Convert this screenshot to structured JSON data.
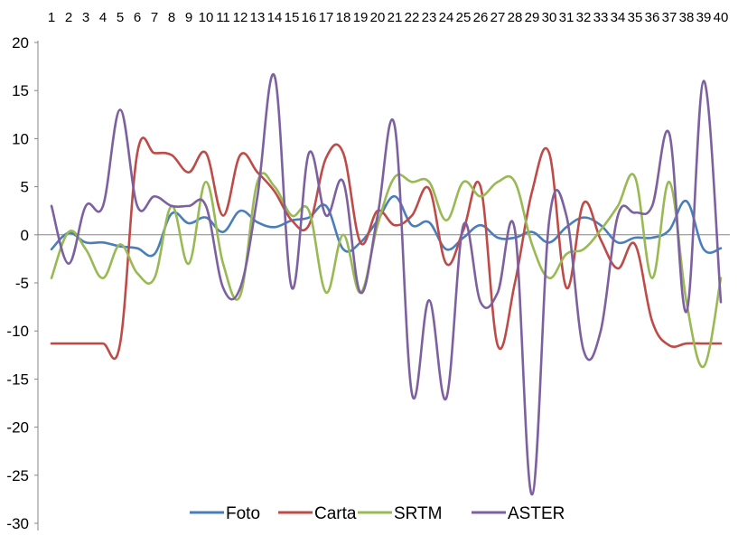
{
  "chart_data": {
    "type": "line",
    "title": "",
    "xlabel": "",
    "ylabel": "",
    "x": [
      1,
      2,
      3,
      4,
      5,
      6,
      7,
      8,
      9,
      10,
      11,
      12,
      13,
      14,
      15,
      16,
      17,
      18,
      19,
      20,
      21,
      22,
      23,
      24,
      25,
      26,
      27,
      28,
      29,
      30,
      31,
      32,
      33,
      34,
      35,
      36,
      37,
      38,
      39,
      40
    ],
    "ylim": [
      -30,
      20
    ],
    "yticks": [
      "20",
      "15",
      "10",
      "5",
      "0",
      "-5",
      "-10",
      "-15",
      "-20",
      "-25",
      "-30"
    ],
    "xtick_labels": [
      "1",
      "2",
      "3",
      "4",
      "5",
      "6",
      "7",
      "8",
      "9",
      "10",
      "11",
      "12",
      "13",
      "14",
      "15",
      "16",
      "17",
      "18",
      "19",
      "20",
      "21",
      "22",
      "23",
      "24",
      "25",
      "26",
      "27",
      "28",
      "29",
      "30",
      "31",
      "32",
      "33",
      "34",
      "35",
      "36",
      "37",
      "38",
      "39",
      "40"
    ],
    "grid": false,
    "legend_position": "bottom",
    "series": [
      {
        "name": "Foto",
        "color": "#4a7ebb",
        "values": [
          -1.5,
          0.2,
          -0.8,
          -0.8,
          -1.2,
          -1.4,
          -2.0,
          2.2,
          1.2,
          1.8,
          0.3,
          2.5,
          1.3,
          0.8,
          1.5,
          1.8,
          3.0,
          -1.5,
          -0.8,
          1.5,
          4.0,
          1.0,
          1.3,
          -1.5,
          -0.3,
          1.0,
          -0.3,
          -0.3,
          0.3,
          -0.8,
          0.8,
          1.8,
          1.0,
          -0.8,
          -0.3,
          -0.3,
          0.5,
          3.5,
          -1.5,
          -1.4
        ]
      },
      {
        "name": "Carta",
        "color": "#be4b48",
        "values": [
          -11.3,
          -11.3,
          -11.3,
          -11.3,
          -11.3,
          8.5,
          8.5,
          8.3,
          6.5,
          8.5,
          2.0,
          8.3,
          6.5,
          4.5,
          1.5,
          1.0,
          8.0,
          8.5,
          -0.8,
          2.5,
          1.0,
          2.0,
          4.8,
          -3.0,
          0.5,
          5.0,
          -11.5,
          -5.0,
          4.5,
          8.5,
          -5.5,
          3.3,
          -0.5,
          -3.5,
          -1.0,
          -9.0,
          -11.5,
          -11.3,
          -11.3,
          -11.3
        ]
      },
      {
        "name": "SRTM",
        "color": "#98b954",
        "values": [
          -4.5,
          0.3,
          -1.5,
          -4.5,
          -1.0,
          -4.0,
          -4.5,
          3.0,
          -3.0,
          5.5,
          -3.0,
          -6.3,
          5.5,
          5.0,
          2.0,
          2.5,
          -6.0,
          0.0,
          -6.0,
          1.0,
          6.0,
          5.5,
          5.5,
          1.5,
          5.5,
          4.0,
          5.5,
          5.5,
          -1.0,
          -4.5,
          -2.0,
          -1.5,
          0.5,
          3.0,
          6.0,
          -4.5,
          5.5,
          -7.0,
          -13.7,
          -4.5
        ]
      },
      {
        "name": "ASTER",
        "color": "#7d60a0",
        "values": [
          3.0,
          -3.0,
          3.0,
          3.0,
          13.0,
          3.0,
          4.0,
          3.0,
          3.0,
          3.0,
          -5.5,
          -5.5,
          4.0,
          16.5,
          -5.5,
          8.5,
          2.0,
          5.5,
          -6.0,
          2.0,
          11.3,
          -16.5,
          -6.8,
          -17.0,
          1.0,
          -7.0,
          -6.0,
          0.5,
          -27.0,
          1.5,
          2.0,
          -12.0,
          -10.0,
          2.0,
          2.3,
          3.0,
          10.5,
          -8.0,
          16.0,
          -7.0
        ]
      }
    ]
  }
}
